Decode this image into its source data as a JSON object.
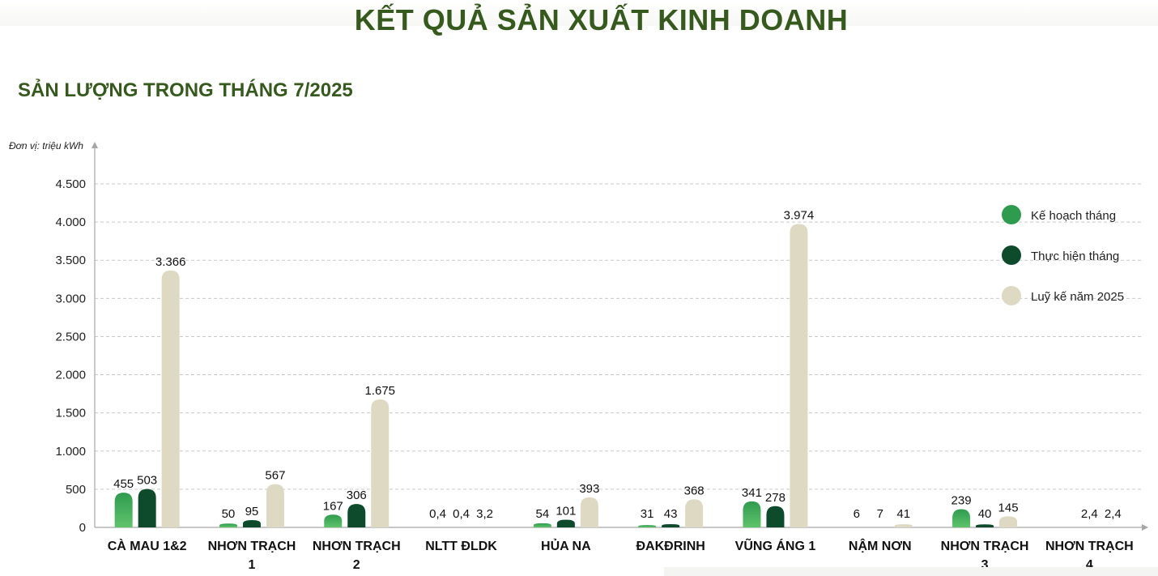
{
  "header": {
    "title": "KẾT QUẢ SẢN XUẤT KINH DOANH",
    "subtitle": "SẢN LƯỢNG TRONG THÁNG 7/2025",
    "unit": "Đơn vị: triệu kWh"
  },
  "colors": {
    "title": "#365a1e",
    "plan_top": "#2f9b4f",
    "plan_bottom": "#5fc36b",
    "actual": "#0e4b2c",
    "cumulative": "#ddd9c3",
    "grid": "#c9c9c9",
    "axis": "#a6a6a6"
  },
  "chart_data": {
    "type": "bar",
    "categories": [
      [
        "CÀ MAU 1&2"
      ],
      [
        "NHƠN TRẠCH",
        "1"
      ],
      [
        "NHƠN TRẠCH",
        "2"
      ],
      [
        "NLTT ĐLDK"
      ],
      [
        "HỦA NA"
      ],
      [
        "ĐAKĐRINH"
      ],
      [
        "VŨNG ÁNG 1"
      ],
      [
        "NẬM NƠN"
      ],
      [
        "NHƠN TRẠCH",
        "3"
      ],
      [
        "NHƠN TRẠCH",
        "4"
      ]
    ],
    "series": [
      {
        "name": "Kế hoạch tháng",
        "values": [
          455,
          50,
          167,
          0.4,
          54,
          31,
          341,
          6,
          239,
          null
        ],
        "labels": [
          "455",
          "50",
          "167",
          "0,4",
          "54",
          "31",
          "341",
          "6",
          "239",
          ""
        ]
      },
      {
        "name": "Thực hiện tháng",
        "values": [
          503,
          95,
          306,
          0.4,
          101,
          43,
          278,
          7,
          40,
          2.4
        ],
        "labels": [
          "503",
          "95",
          "306",
          "0,4",
          "101",
          "43",
          "278",
          "7",
          "40",
          "2,4"
        ]
      },
      {
        "name": "Luỹ kế năm 2025",
        "values": [
          3366,
          567,
          1675,
          3.2,
          393,
          368,
          3974,
          41,
          145,
          2.4
        ],
        "labels": [
          "3.366",
          "567",
          "1.675",
          "3,2",
          "393",
          "368",
          "3.974",
          "41",
          "145",
          "2,4"
        ]
      }
    ],
    "ylim": [
      0,
      4500
    ],
    "yticks": [
      0,
      500,
      1000,
      1500,
      2000,
      2500,
      3000,
      3500,
      4000,
      4500
    ],
    "ytick_labels": [
      "0",
      "500",
      "1.000",
      "1.500",
      "2.000",
      "2.500",
      "3.000",
      "3.500",
      "4.000",
      "4.500"
    ],
    "grid": true,
    "legend_position": "right"
  }
}
